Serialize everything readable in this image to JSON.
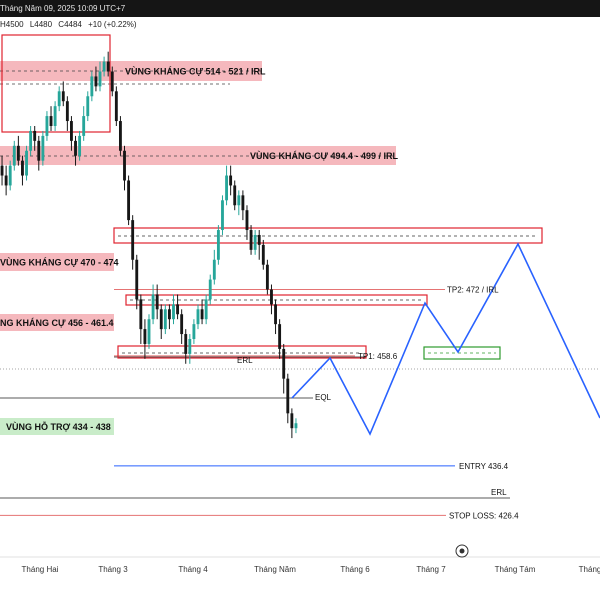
{
  "header": {
    "datetime": "Tháng Năm 09, 2025 10:09 UTC+7",
    "high": "H4500",
    "low": "L4480",
    "close": "C4484",
    "change": "+10 (+0.22%)"
  },
  "colors": {
    "up": "#26a69a",
    "down": "#161616",
    "resistance_fill": "#f5b8bd",
    "resistance_border": "#e0232f",
    "support_fill": "#c9ecc9",
    "support_border": "#2e9b2e",
    "projection": "#2962ff",
    "level_line": "#e57373"
  },
  "chart_data": {
    "type": "candlestick",
    "y_range": [
      418,
      527
    ],
    "x_axis": [
      "Tháng Hai",
      "Tháng 3",
      "Tháng 4",
      "Tháng Năm",
      "Tháng 6",
      "Tháng 7",
      "Tháng Tám",
      "Tháng"
    ],
    "zones": [
      {
        "label": "VÙNG KHÁNG CỰ 514 - 521 / IRL",
        "type": "resistance"
      },
      {
        "label": "VÙNG KHÁNG CỰ 494.4 - 499 / IRL",
        "type": "resistance"
      },
      {
        "label": "VÙNG KHÁNG CỰ 470 - 474",
        "type": "resistance"
      },
      {
        "label": "NG KHÁNG CỰ 456 - 461.4",
        "type": "resistance"
      },
      {
        "label": "VÙNG HỖ TRỢ 434 - 438",
        "type": "support"
      }
    ],
    "levels": [
      {
        "label": "TP2: 472 / IRL",
        "value": 472
      },
      {
        "label": "TP1: 458.6",
        "value": 458.6
      },
      {
        "label": "ENTRY 436.4",
        "value": 436.4
      },
      {
        "label": "STOP LOSS: 426.4",
        "value": 426.4
      }
    ],
    "markers": [
      "ERL",
      "EQL",
      "ERL"
    ],
    "projection_path": [
      [
        "Tháng Năm",
        442
      ],
      [
        "Tháng Năm",
        448
      ],
      [
        "Tháng 6",
        435
      ],
      [
        "Tháng 7",
        460
      ],
      [
        "Tháng 7",
        452
      ],
      [
        "Tháng Tám",
        473
      ],
      [
        "Tháng",
        438
      ]
    ],
    "candles": [
      [
        497,
        495,
        499,
        493
      ],
      [
        495,
        493,
        497,
        491
      ],
      [
        493,
        497,
        498,
        492
      ],
      [
        497,
        501,
        502,
        496
      ],
      [
        501,
        498,
        503,
        497
      ],
      [
        498,
        495,
        499,
        493
      ],
      [
        495,
        500,
        501,
        494
      ],
      [
        500,
        504,
        505,
        499
      ],
      [
        504,
        502,
        505,
        500
      ],
      [
        502,
        498,
        503,
        496
      ],
      [
        498,
        503,
        504,
        497
      ],
      [
        503,
        507,
        508,
        502
      ],
      [
        507,
        505,
        509,
        504
      ],
      [
        505,
        509,
        510,
        504
      ],
      [
        509,
        512,
        513,
        508
      ],
      [
        512,
        510,
        514,
        509
      ],
      [
        510,
        506,
        511,
        504
      ],
      [
        506,
        502,
        507,
        500
      ],
      [
        502,
        499,
        503,
        497
      ],
      [
        499,
        503,
        504,
        498
      ],
      [
        503,
        507,
        509,
        502
      ],
      [
        507,
        511,
        512,
        506
      ],
      [
        511,
        515,
        516,
        510
      ],
      [
        515,
        513,
        517,
        512
      ],
      [
        513,
        516,
        518,
        512
      ],
      [
        516,
        518,
        519,
        515
      ],
      [
        518,
        516,
        520,
        515
      ],
      [
        516,
        512,
        517,
        511
      ],
      [
        512,
        506,
        513,
        505
      ],
      [
        506,
        500,
        507,
        499
      ],
      [
        500,
        494,
        501,
        492
      ],
      [
        494,
        486,
        495,
        485
      ],
      [
        486,
        478,
        487,
        476
      ],
      [
        478,
        470,
        479,
        468
      ],
      [
        470,
        464,
        471,
        461
      ],
      [
        464,
        461,
        466,
        458
      ],
      [
        461,
        466,
        467,
        460
      ],
      [
        466,
        471,
        473,
        465
      ],
      [
        471,
        468,
        473,
        466
      ],
      [
        468,
        464,
        469,
        462
      ],
      [
        464,
        468,
        469,
        463
      ],
      [
        468,
        466,
        469,
        464
      ],
      [
        466,
        469,
        471,
        465
      ],
      [
        469,
        467,
        471,
        466
      ],
      [
        467,
        463,
        468,
        461
      ],
      [
        463,
        459,
        464,
        457
      ],
      [
        459,
        462,
        463,
        457
      ],
      [
        462,
        465,
        466,
        461
      ],
      [
        465,
        468,
        469,
        464
      ],
      [
        468,
        466,
        470,
        465
      ],
      [
        466,
        470,
        471,
        465
      ],
      [
        470,
        474,
        475,
        469
      ],
      [
        474,
        478,
        480,
        473
      ],
      [
        478,
        484,
        485,
        477
      ],
      [
        484,
        490,
        491,
        483
      ],
      [
        490,
        495,
        497,
        489
      ],
      [
        495,
        493,
        497,
        491
      ],
      [
        493,
        489,
        494,
        488
      ],
      [
        489,
        491,
        492,
        487
      ],
      [
        491,
        488,
        492,
        486
      ],
      [
        488,
        484,
        489,
        482
      ],
      [
        484,
        480,
        485,
        479
      ],
      [
        480,
        483,
        484,
        479
      ],
      [
        483,
        481,
        484,
        478
      ],
      [
        481,
        477,
        482,
        476
      ],
      [
        477,
        472,
        478,
        471
      ],
      [
        472,
        469,
        473,
        467
      ],
      [
        469,
        465,
        470,
        463
      ],
      [
        465,
        460,
        466,
        458
      ],
      [
        460,
        454,
        461,
        451
      ],
      [
        454,
        447,
        455,
        445
      ],
      [
        447,
        444,
        448,
        442
      ],
      [
        444,
        445,
        446,
        443
      ]
    ]
  }
}
